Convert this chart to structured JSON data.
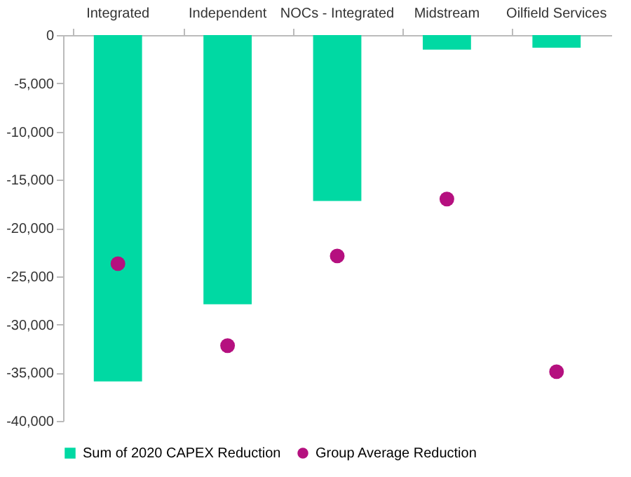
{
  "chart_data": {
    "type": "bar",
    "categories": [
      "Integrated",
      "Independent",
      "NOCs - Integrated",
      "Midstream",
      "Oilfield Services"
    ],
    "series": [
      {
        "name": "Sum of 2020 CAPEX Reduction",
        "color": "#00d9a3",
        "values": [
          -35900,
          -27900,
          -17200,
          -1500,
          -1300
        ]
      },
      {
        "name": "Group Average Reduction",
        "type": "scatter",
        "color": "#b5107f",
        "marker": "circle",
        "values": [
          -23700,
          -32200,
          -22900,
          -17000,
          -34900
        ]
      }
    ],
    "ylim": [
      -40000,
      0
    ],
    "yticks": [
      {
        "value": -40000,
        "label": "-40,000"
      },
      {
        "value": -35000,
        "label": "-35,000"
      },
      {
        "value": -30000,
        "label": "-30,000"
      },
      {
        "value": -25000,
        "label": "-25,000"
      },
      {
        "value": -20000,
        "label": "-20,000"
      },
      {
        "value": -15000,
        "label": "-15,000"
      },
      {
        "value": -10000,
        "label": "-10,000"
      },
      {
        "value": -5000,
        "label": "-5,000"
      },
      0
    ],
    "grid": false,
    "legend": "bottom"
  }
}
